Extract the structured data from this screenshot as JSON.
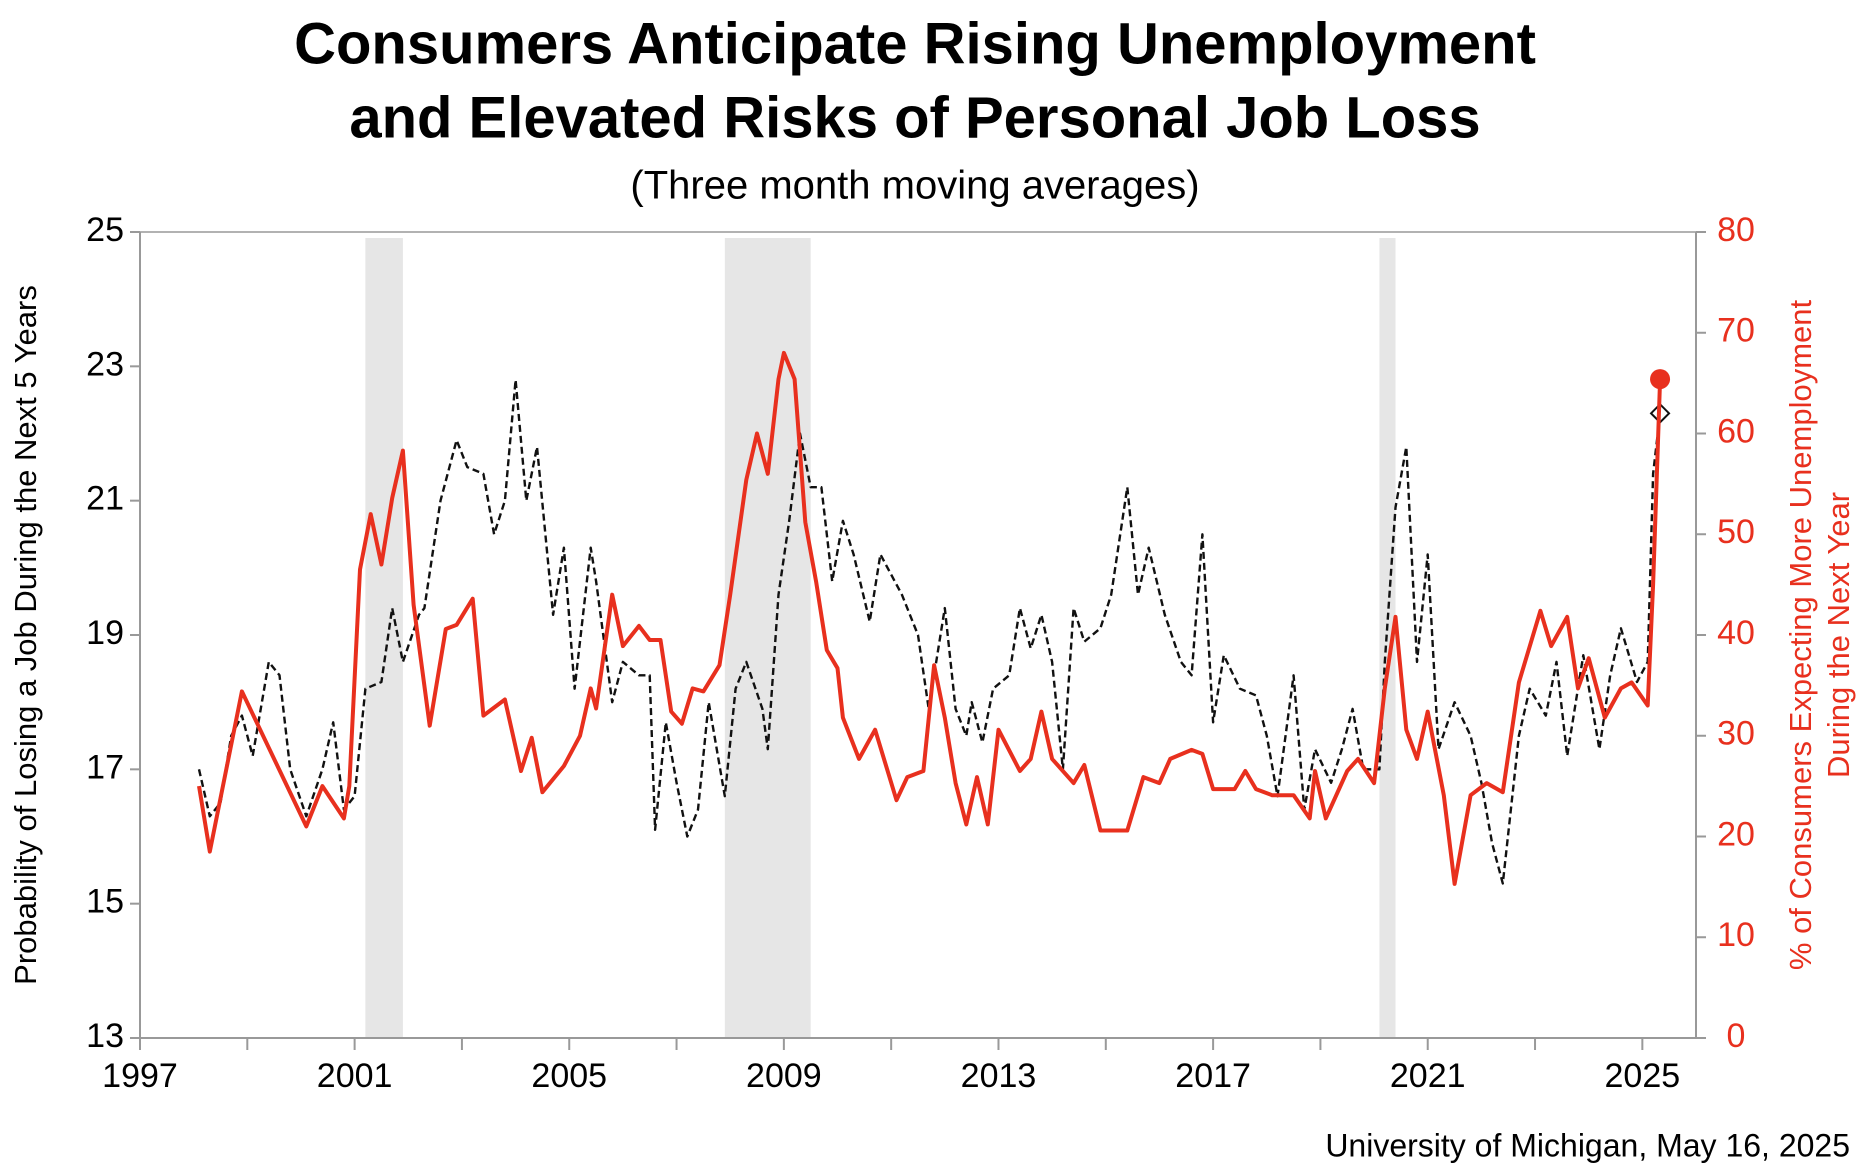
{
  "chart_data": {
    "type": "line",
    "title": [
      "Consumers Anticipate Rising Unemployment",
      "and Elevated Risks of Personal Job Loss"
    ],
    "subtitle": "(Three month moving averages)",
    "ylabel": "Probability of Losing a Job During the Next 5 Years",
    "y2label": [
      "% of Consumers Expecting More Unemployment",
      "During the Next Year"
    ],
    "source": "University of Michigan, May 16, 2025",
    "xlim": [
      1997,
      2026
    ],
    "xticks": [
      1997,
      2001,
      2005,
      2009,
      2013,
      2017,
      2021,
      2025
    ],
    "xminor_ticks": [
      1999,
      2003,
      2007,
      2011,
      2015,
      2019,
      2023
    ],
    "ylim": [
      13,
      25
    ],
    "yticks": [
      13,
      15,
      17,
      19,
      21,
      23,
      25
    ],
    "y2lim": [
      0,
      80
    ],
    "y2ticks": [
      0,
      10,
      20,
      30,
      40,
      50,
      60,
      70,
      80
    ],
    "y2color": "#e8301e",
    "recessions": [
      [
        2001.2,
        2001.9
      ],
      [
        2007.9,
        2009.5
      ],
      [
        2020.1,
        2020.4
      ]
    ],
    "series": [
      {
        "color": "#111111",
        "dashed": true,
        "axis": "y",
        "marker_last": "diamond",
        "x": [
          1998.1,
          1998.3,
          1998.5,
          1998.7,
          1998.9,
          1999.1,
          1999.4,
          1999.6,
          1999.8,
          2000.1,
          2000.4,
          2000.6,
          2000.8,
          2001.0,
          2001.2,
          2001.5,
          2001.7,
          2001.9,
          2002.2,
          2002.3,
          2002.6,
          2002.9,
          2003.1,
          2003.4,
          2003.6,
          2003.8,
          2004.0,
          2004.2,
          2004.4,
          2004.7,
          2004.9,
          2005.1,
          2005.4,
          2005.5,
          2005.8,
          2006.0,
          2006.3,
          2006.5,
          2006.6,
          2006.8,
          2007.0,
          2007.2,
          2007.4,
          2007.6,
          2007.9,
          2008.1,
          2008.3,
          2008.6,
          2008.7,
          2008.9,
          2009.1,
          2009.3,
          2009.5,
          2009.7,
          2009.9,
          2010.1,
          2010.3,
          2010.6,
          2010.8,
          2011.2,
          2011.5,
          2011.7,
          2012.0,
          2012.2,
          2012.4,
          2012.5,
          2012.7,
          2012.9,
          2013.2,
          2013.4,
          2013.6,
          2013.8,
          2014.0,
          2014.2,
          2014.4,
          2014.6,
          2014.9,
          2015.1,
          2015.4,
          2015.6,
          2015.8,
          2016.1,
          2016.4,
          2016.6,
          2016.8,
          2017.0,
          2017.2,
          2017.5,
          2017.8,
          2018.0,
          2018.2,
          2018.5,
          2018.7,
          2018.9,
          2019.2,
          2019.4,
          2019.6,
          2019.8,
          2020.1,
          2020.2,
          2020.4,
          2020.6,
          2020.8,
          2021.0,
          2021.2,
          2021.5,
          2021.8,
          2022.0,
          2022.2,
          2022.4,
          2022.7,
          2022.9,
          2023.2,
          2023.4,
          2023.6,
          2023.9,
          2024.2,
          2024.4,
          2024.6,
          2024.9,
          2025.1,
          2025.2,
          2025.33
        ],
        "values": [
          17.0,
          16.3,
          16.5,
          17.5,
          17.8,
          17.2,
          18.6,
          18.4,
          17.0,
          16.3,
          17.0,
          17.7,
          16.4,
          16.6,
          18.2,
          18.3,
          19.4,
          18.6,
          19.3,
          19.4,
          21.0,
          21.9,
          21.5,
          21.4,
          20.5,
          21.0,
          22.8,
          21.0,
          21.8,
          19.3,
          20.3,
          18.2,
          20.3,
          19.8,
          18.0,
          18.6,
          18.4,
          18.4,
          16.1,
          17.7,
          16.8,
          16.0,
          16.4,
          18.0,
          16.6,
          18.2,
          18.6,
          17.9,
          17.3,
          19.6,
          20.7,
          22.0,
          21.2,
          21.2,
          19.8,
          20.7,
          20.2,
          19.2,
          20.2,
          19.6,
          19.0,
          17.9,
          19.4,
          17.9,
          17.5,
          18.0,
          17.4,
          18.2,
          18.4,
          19.4,
          18.8,
          19.3,
          18.6,
          17.0,
          19.4,
          18.9,
          19.1,
          19.6,
          21.2,
          19.6,
          20.3,
          19.3,
          18.6,
          18.4,
          20.5,
          17.7,
          18.7,
          18.2,
          18.1,
          17.5,
          16.6,
          18.4,
          16.4,
          17.3,
          16.8,
          17.3,
          17.9,
          17.0,
          17.0,
          18.6,
          20.9,
          21.8,
          18.6,
          20.2,
          17.3,
          18.0,
          17.5,
          16.8,
          15.9,
          15.3,
          17.5,
          18.2,
          17.8,
          18.6,
          17.2,
          18.7,
          17.3,
          18.4,
          19.1,
          18.3,
          18.6,
          21.4,
          22.3
        ]
      },
      {
        "color": "#e8301e",
        "dashed": false,
        "axis": "y2",
        "marker_last": "circle",
        "x": [
          1998.1,
          1998.3,
          1998.9,
          2000.1,
          2000.4,
          2000.8,
          2000.9,
          2001.1,
          2001.3,
          2001.5,
          2001.7,
          2001.9,
          2002.1,
          2002.4,
          2002.7,
          2002.9,
          2003.2,
          2003.4,
          2003.8,
          2004.1,
          2004.3,
          2004.5,
          2004.9,
          2005.2,
          2005.4,
          2005.5,
          2005.8,
          2006.0,
          2006.3,
          2006.5,
          2006.7,
          2006.9,
          2007.1,
          2007.3,
          2007.5,
          2007.8,
          2008.0,
          2008.3,
          2008.5,
          2008.7,
          2008.9,
          2009.0,
          2009.2,
          2009.4,
          2009.6,
          2009.8,
          2010.0,
          2010.1,
          2010.4,
          2010.7,
          2011.1,
          2011.3,
          2011.6,
          2011.8,
          2012.0,
          2012.2,
          2012.4,
          2012.6,
          2012.8,
          2013.0,
          2013.4,
          2013.6,
          2013.8,
          2014.0,
          2014.4,
          2014.6,
          2014.9,
          2015.4,
          2015.7,
          2016.0,
          2016.2,
          2016.6,
          2016.8,
          2017.0,
          2017.4,
          2017.6,
          2017.8,
          2018.1,
          2018.5,
          2018.8,
          2018.9,
          2019.1,
          2019.5,
          2019.7,
          2020.0,
          2020.2,
          2020.4,
          2020.6,
          2020.8,
          2021.0,
          2021.3,
          2021.5,
          2021.8,
          2022.1,
          2022.4,
          2022.7,
          2023.1,
          2023.3,
          2023.6,
          2023.8,
          2024.0,
          2024.3,
          2024.6,
          2024.8,
          2025.1,
          2025.2,
          2025.33
        ],
        "values": [
          25.0,
          18.5,
          34.4,
          21.0,
          25.0,
          21.8,
          25.0,
          46.5,
          52.0,
          47.0,
          53.6,
          58.3,
          43.0,
          31.0,
          40.6,
          41.0,
          43.6,
          32.0,
          33.6,
          26.5,
          29.8,
          24.4,
          27.0,
          30.0,
          34.7,
          32.7,
          44.0,
          38.9,
          40.9,
          39.5,
          39.5,
          32.4,
          31.2,
          34.7,
          34.4,
          37.0,
          44.0,
          55.4,
          60.0,
          56.0,
          65.4,
          68.0,
          65.4,
          51.2,
          45.3,
          38.5,
          36.7,
          31.8,
          27.7,
          30.6,
          23.6,
          25.9,
          26.5,
          37.0,
          31.8,
          25.3,
          21.2,
          25.9,
          21.2,
          30.6,
          26.5,
          27.7,
          32.4,
          27.7,
          25.3,
          27.1,
          20.6,
          20.6,
          25.9,
          25.3,
          27.7,
          28.6,
          28.2,
          24.7,
          24.7,
          26.5,
          24.7,
          24.1,
          24.1,
          21.8,
          26.5,
          21.8,
          26.5,
          27.7,
          25.3,
          34.7,
          41.8,
          30.6,
          27.7,
          32.4,
          24.1,
          15.3,
          24.1,
          25.3,
          24.4,
          35.3,
          42.4,
          38.9,
          41.8,
          34.7,
          37.7,
          31.8,
          34.7,
          35.3,
          33.0,
          45.0,
          65.4
        ]
      }
    ]
  }
}
